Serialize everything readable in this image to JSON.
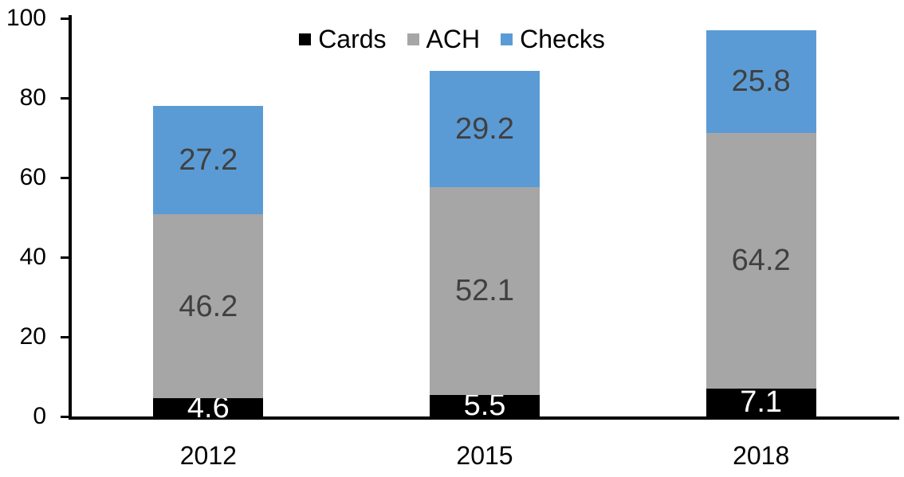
{
  "chart_data": {
    "type": "bar",
    "stacked": true,
    "categories": [
      "2012",
      "2015",
      "2018"
    ],
    "series": [
      {
        "name": "Cards",
        "color": "#000000",
        "label_color": "#FFFFFF",
        "values": [
          4.6,
          5.5,
          7.1
        ]
      },
      {
        "name": "ACH",
        "color": "#A6A6A6",
        "label_color": "#404040",
        "values": [
          46.2,
          52.1,
          64.2
        ]
      },
      {
        "name": "Checks",
        "color": "#5B9BD5",
        "label_color": "#404040",
        "values": [
          27.2,
          29.2,
          25.8
        ]
      }
    ],
    "title": "",
    "xlabel": "",
    "ylabel": "",
    "ylim": [
      0,
      100
    ],
    "y_ticks": [
      0,
      20,
      40,
      60,
      80,
      100
    ],
    "grid": false,
    "legend_position": "top-center",
    "axis_color": "#000000"
  }
}
